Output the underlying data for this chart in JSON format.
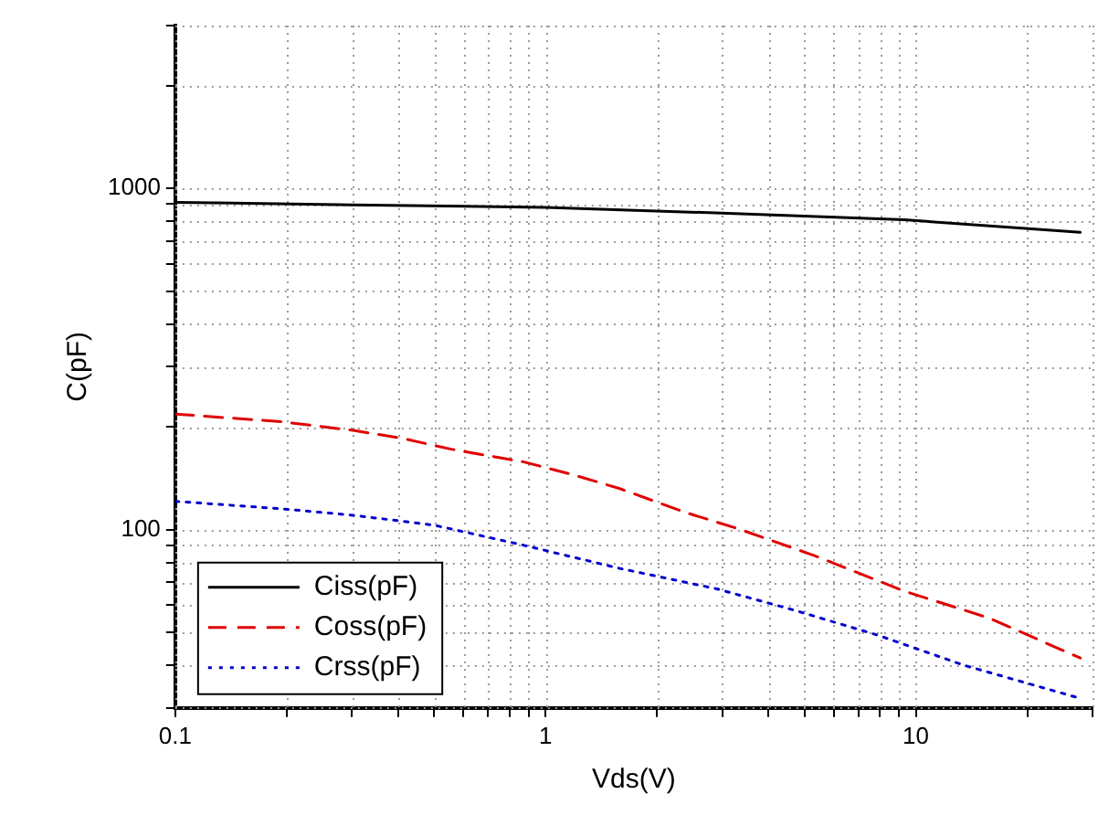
{
  "chart_data": {
    "type": "line",
    "xlabel": "Vds(V)",
    "ylabel": "C(pF)",
    "log": "xy",
    "grid": true,
    "legend": "bottom left",
    "marker": "none",
    "xlim": [
      0.1,
      30
    ],
    "ylim": [
      30,
      3000
    ],
    "xticks": [
      0.1,
      {
        "value": 0.2,
        "label": null
      },
      {
        "value": 0.3,
        "label": null
      },
      {
        "value": 0.4,
        "label": null
      },
      {
        "value": 0.5,
        "label": null
      },
      {
        "value": 0.6,
        "label": null
      },
      {
        "value": 0.7,
        "label": null
      },
      {
        "value": 0.8,
        "label": null
      },
      {
        "value": 0.9,
        "label": null
      },
      1,
      {
        "value": 2,
        "label": null
      },
      {
        "value": 3,
        "label": null
      },
      {
        "value": 4,
        "label": null
      },
      {
        "value": 5,
        "label": null
      },
      {
        "value": 6,
        "label": null
      },
      {
        "value": 7,
        "label": null
      },
      {
        "value": 8,
        "label": null
      },
      {
        "value": 9,
        "label": null
      },
      10,
      {
        "value": 20,
        "label": null
      },
      {
        "value": 30,
        "label": null
      }
    ],
    "yticks": [
      {
        "value": 30,
        "label": null
      },
      {
        "value": 40,
        "label": null
      },
      {
        "value": 50,
        "label": null
      },
      {
        "value": 60,
        "label": null
      },
      {
        "value": 70,
        "label": null
      },
      {
        "value": 80,
        "label": null
      },
      {
        "value": 90,
        "label": null
      },
      100,
      {
        "value": 200,
        "label": null
      },
      {
        "value": 300,
        "label": null
      },
      {
        "value": 400,
        "label": null
      },
      {
        "value": 500,
        "label": null
      },
      {
        "value": 600,
        "label": null
      },
      {
        "value": 700,
        "label": null
      },
      {
        "value": 800,
        "label": null
      },
      {
        "value": 900,
        "label": null
      },
      1000,
      {
        "value": 2000,
        "label": null
      },
      {
        "value": 3000,
        "label": null
      }
    ],
    "series": [
      {
        "name": "Ciss(pF)",
        "color": "#000000",
        "line_style": "solid",
        "x": [
          0.1,
          0.3,
          1,
          3,
          9.3,
          27.8
        ],
        "values": [
          910,
          895,
          880,
          846,
          809,
          743
        ]
      },
      {
        "name": "Coss(pF)",
        "color": "#e00000",
        "line_style": "dashed",
        "x": [
          0.1,
          0.194,
          0.305,
          0.41,
          0.556,
          0.87,
          1.18,
          1.58,
          2.4,
          3.27,
          5.3,
          9.3,
          15.8,
          27.8
        ],
        "values": [
          218,
          207,
          195,
          185,
          172,
          158,
          145,
          132,
          112,
          101,
          84,
          66,
          55,
          42
        ]
      },
      {
        "name": "Crss(pF)",
        "color": "#0000cc",
        "line_style": "dotted",
        "x": [
          0.1,
          0.194,
          0.305,
          0.5,
          0.87,
          1.58,
          2.9,
          4.7,
          7.9,
          13.5,
          27.8
        ],
        "values": [
          121,
          115,
          110,
          103,
          90,
          77,
          67,
          58,
          49,
          40,
          32
        ]
      }
    ]
  }
}
